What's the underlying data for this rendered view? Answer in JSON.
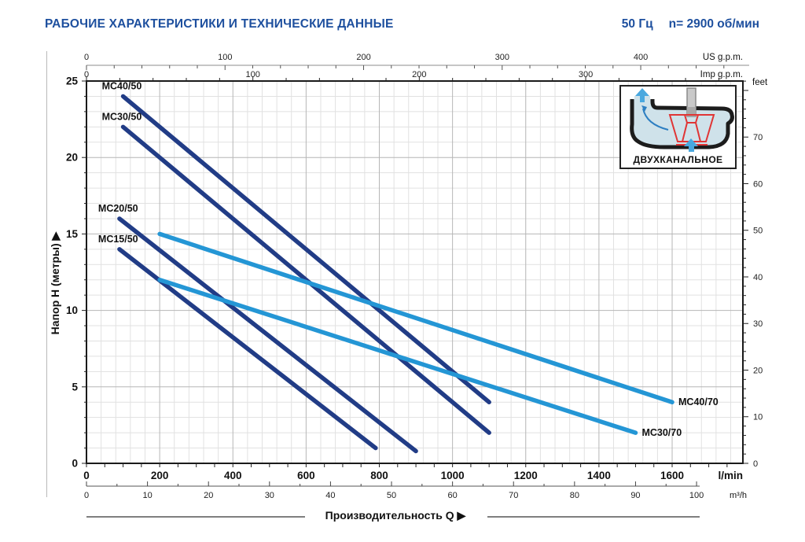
{
  "header": {
    "title": "РАБОЧИЕ ХАРАКТЕРИСТИКИ И ТЕХНИЧЕСКИЕ ДАННЫЕ",
    "frequency": "50 Гц",
    "speed": "n= 2900 об/мин"
  },
  "inset": {
    "label": "ДВУХКАНАЛЬНОЕ"
  },
  "chart_data": {
    "type": "line",
    "xlabel": "Производительность Q  ▶",
    "ylabel": "Напор H (метры)  ▶",
    "x_axis_bottom_primary": {
      "unit": "l/min",
      "ticks": [
        0,
        200,
        400,
        600,
        800,
        1000,
        1200,
        1400,
        1600
      ],
      "max": 1790
    },
    "x_axis_bottom_secondary": {
      "unit": "m³/h",
      "ticks": [
        0,
        10,
        20,
        30,
        40,
        50,
        60,
        70,
        80,
        90,
        100
      ]
    },
    "x_axis_top_primary": {
      "unit": "US g.p.m.",
      "ticks": [
        0,
        100,
        200,
        300,
        400
      ]
    },
    "x_axis_top_secondary": {
      "unit": "Imp g.p.m.",
      "ticks": [
        0,
        100,
        200,
        300
      ]
    },
    "y_axis_left": {
      "unit": "метры",
      "ticks": [
        0,
        5,
        10,
        15,
        20,
        25
      ],
      "max": 25
    },
    "y_axis_right": {
      "unit": "feet",
      "ticks": [
        0,
        10,
        20,
        30,
        40,
        50,
        60,
        70
      ]
    },
    "grid": {
      "minor_x_lmin": 40,
      "major_x_lmin": 200,
      "minor_y_m": 1,
      "major_y_m": 5
    },
    "colors": {
      "dark_series": "#213c86",
      "light_series": "#2496d5",
      "title_blue": "#1d4f9e"
    },
    "series": [
      {
        "name": "MC40/50",
        "color": "dark",
        "label_pos": "start-above",
        "points": [
          [
            100,
            24
          ],
          [
            1100,
            4
          ]
        ]
      },
      {
        "name": "MC30/50",
        "color": "dark",
        "label_pos": "start-above",
        "points": [
          [
            100,
            22
          ],
          [
            1100,
            2
          ]
        ]
      },
      {
        "name": "MC20/50",
        "color": "dark",
        "label_pos": "start-above",
        "points": [
          [
            90,
            16
          ],
          [
            900,
            0.8
          ]
        ]
      },
      {
        "name": "MC15/50",
        "color": "dark",
        "label_pos": "start-above",
        "points": [
          [
            90,
            14
          ],
          [
            790,
            1
          ]
        ]
      },
      {
        "name": "MC40/70",
        "color": "light",
        "label_pos": "end-right",
        "points": [
          [
            200,
            15
          ],
          [
            1600,
            4
          ]
        ]
      },
      {
        "name": "MC30/70",
        "color": "light",
        "label_pos": "end-right",
        "points": [
          [
            200,
            12
          ],
          [
            1500,
            2
          ]
        ]
      }
    ]
  }
}
